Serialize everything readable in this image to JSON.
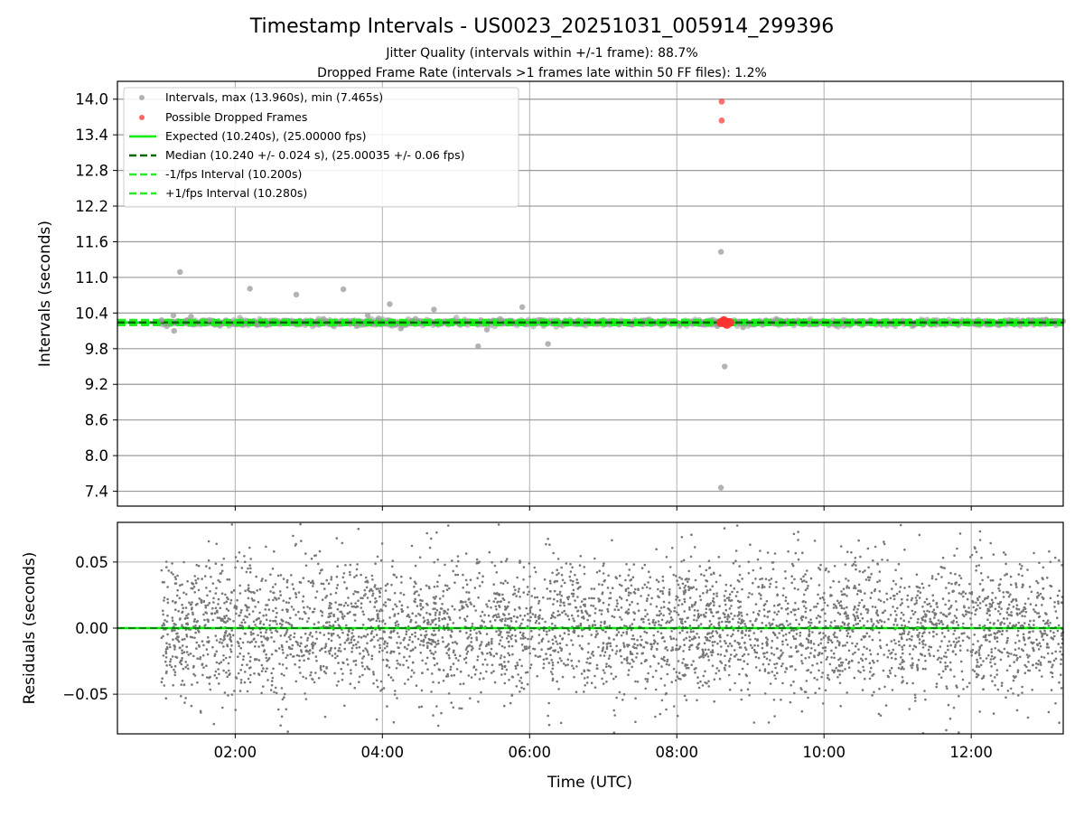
{
  "figure": {
    "title": "Timestamp Intervals - US0023_20251031_005914_299396",
    "subtitle_jitter": "Jitter Quality (intervals within +/-1 frame): 88.7%",
    "subtitle_dropped": "Dropped Frame Rate (intervals >1 frames late within 50 FF files): 1.2%"
  },
  "colors": {
    "intervals": "#999999",
    "dropped": "#ff3333",
    "expected": "#00ee00",
    "median": "#006600",
    "fps_bounds": "#22ee22",
    "residuals": "#777777",
    "grid": "#b0b0b0"
  },
  "chart_data": [
    {
      "type": "scatter",
      "name": "intervals",
      "title": "",
      "xlabel": "",
      "ylabel": "Intervals (seconds)",
      "x_unit": "hours UTC",
      "xlim": [
        0.4,
        13.25
      ],
      "ylim": [
        7.15,
        14.3
      ],
      "yticks": [
        7.4,
        8.0,
        8.6,
        9.2,
        9.8,
        10.4,
        11.0,
        11.6,
        12.2,
        12.8,
        13.4,
        14.0
      ],
      "ytick_labels": [
        "7.4",
        "8.0",
        "8.6",
        "9.2",
        "9.8",
        "10.4",
        "11.0",
        "11.6",
        "12.2",
        "12.8",
        "13.4",
        "14.0"
      ],
      "xticks": [
        2,
        4,
        6,
        8,
        10,
        12
      ],
      "grid": true,
      "legend_position": "top-left",
      "legend": [
        "Intervals, max (13.960s), min (7.465s)",
        "Possible Dropped Frames",
        "Expected (10.240s), (25.00000 fps)",
        "Median (10.240 +/- 0.024 s), (25.00035 +/- 0.06 fps)",
        "-1/fps Interval (10.200s)",
        "+1/fps Interval (10.280s)"
      ],
      "reference_lines": {
        "expected": 10.24,
        "median": 10.24,
        "minus_one_fps": 10.2,
        "plus_one_fps": 10.28
      },
      "series_range": [
        1.0,
        13.25
      ],
      "outliers": [
        [
          1.0,
          10.28
        ],
        [
          1.07,
          10.18
        ],
        [
          1.16,
          10.36
        ],
        [
          1.25,
          11.09
        ],
        [
          1.17,
          10.1
        ],
        [
          1.4,
          10.34
        ],
        [
          1.65,
          10.28
        ],
        [
          2.2,
          10.81
        ],
        [
          2.3,
          10.2
        ],
        [
          2.83,
          10.71
        ],
        [
          3.2,
          10.3
        ],
        [
          3.47,
          10.8
        ],
        [
          3.65,
          10.18
        ],
        [
          3.8,
          10.36
        ],
        [
          3.95,
          10.31
        ],
        [
          4.1,
          10.55
        ],
        [
          4.25,
          10.14
        ],
        [
          4.45,
          10.3
        ],
        [
          4.7,
          10.46
        ],
        [
          5.3,
          9.84
        ],
        [
          5.42,
          10.12
        ],
        [
          5.9,
          10.5
        ],
        [
          5.6,
          10.3
        ],
        [
          6.25,
          9.88
        ],
        [
          8.6,
          11.43
        ],
        [
          8.65,
          9.5
        ],
        [
          8.6,
          7.46
        ],
        [
          8.55,
          10.18
        ],
        [
          8.9,
          10.16
        ],
        [
          9.35,
          10.3
        ]
      ],
      "dropped_frames": [
        [
          8.61,
          13.96
        ],
        [
          8.61,
          13.64
        ],
        [
          8.6,
          10.24
        ],
        [
          8.63,
          10.24
        ],
        [
          8.66,
          10.24
        ],
        [
          8.69,
          10.24
        ],
        [
          8.72,
          10.24
        ],
        [
          8.64,
          10.27
        ],
        [
          8.68,
          10.21
        ]
      ]
    },
    {
      "type": "scatter",
      "name": "residuals",
      "title": "",
      "xlabel": "Time (UTC)",
      "ylabel": "Residuals (seconds)",
      "x_unit": "hours UTC",
      "xlim": [
        0.4,
        13.25
      ],
      "ylim": [
        -0.08,
        0.08
      ],
      "yticks": [
        -0.05,
        0.0,
        0.05
      ],
      "ytick_labels": [
        "−0.05",
        "0.00",
        "0.05"
      ],
      "xticks": [
        2,
        4,
        6,
        8,
        10,
        12
      ],
      "xtick_labels": [
        "02:00",
        "04:00",
        "06:00",
        "08:00",
        "10:00",
        "12:00"
      ],
      "grid": true,
      "reference_lines": {
        "expected": 0.0,
        "median": 0.0
      },
      "series_range": [
        1.0,
        13.25
      ],
      "point_count": 4300,
      "spread_sd": 0.027
    }
  ]
}
